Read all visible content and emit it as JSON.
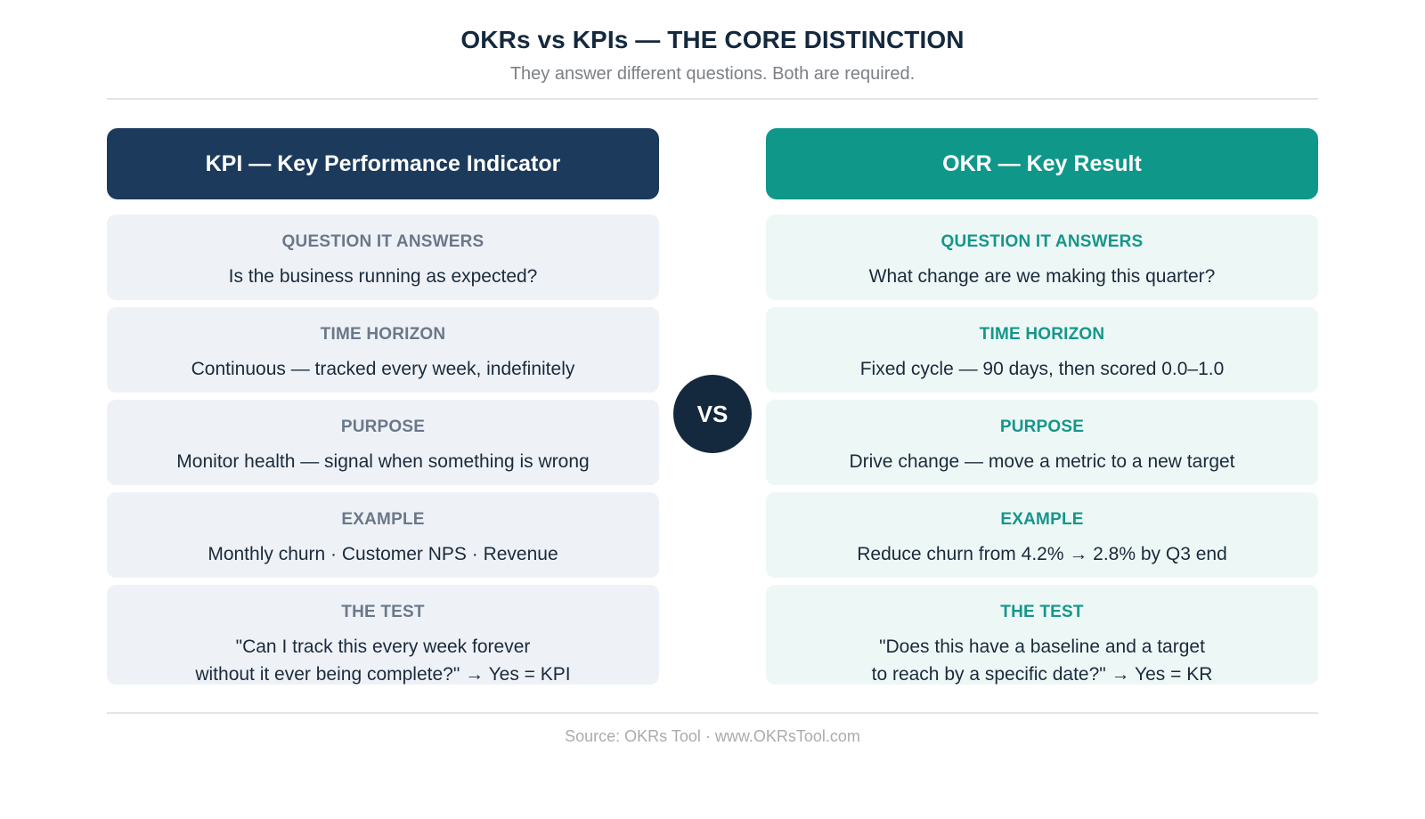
{
  "title": "OKRs vs KPIs — THE CORE DISTINCTION",
  "subtitle": "They answer different questions. Both are required.",
  "kpi": {
    "header": "KPI — Key Performance Indicator",
    "rows": [
      {
        "label": "QUESTION IT ANSWERS",
        "value": "Is the business running as expected?"
      },
      {
        "label": "TIME HORIZON",
        "value": "Continuous — tracked every week, indefinitely"
      },
      {
        "label": "PURPOSE",
        "value": "Monitor health — signal when something is wrong"
      },
      {
        "label": "EXAMPLE",
        "value": "Monthly churn · Customer NPS · Revenue"
      },
      {
        "label": "THE TEST",
        "value_line1": "\"Can I track this every week forever",
        "value_line2": "without it ever being complete?\" → Yes = KPI"
      }
    ]
  },
  "vs_label": "VS",
  "okr": {
    "header": "OKR — Key Result",
    "rows": [
      {
        "label": "QUESTION IT ANSWERS",
        "value": "What change are we making this quarter?"
      },
      {
        "label": "TIME HORIZON",
        "value": "Fixed cycle — 90 days, then scored 0.0–1.0"
      },
      {
        "label": "PURPOSE",
        "value": "Drive change — move a metric to a new target"
      },
      {
        "label": "EXAMPLE",
        "value": "Reduce churn from 4.2% → 2.8% by Q3 end"
      },
      {
        "label": "THE TEST",
        "value_line1": "\"Does this have a baseline and a target",
        "value_line2": "to reach by a specific date?\" → Yes = KR"
      }
    ]
  },
  "source": "Source: OKRs Tool · www.OKRsTool.com",
  "colors": {
    "kpi_header": "#1c3a5b",
    "okr_header": "#0f978a",
    "vs_circle": "#14293e",
    "kpi_card": "#eef2f7",
    "okr_card": "#edf8f6"
  }
}
